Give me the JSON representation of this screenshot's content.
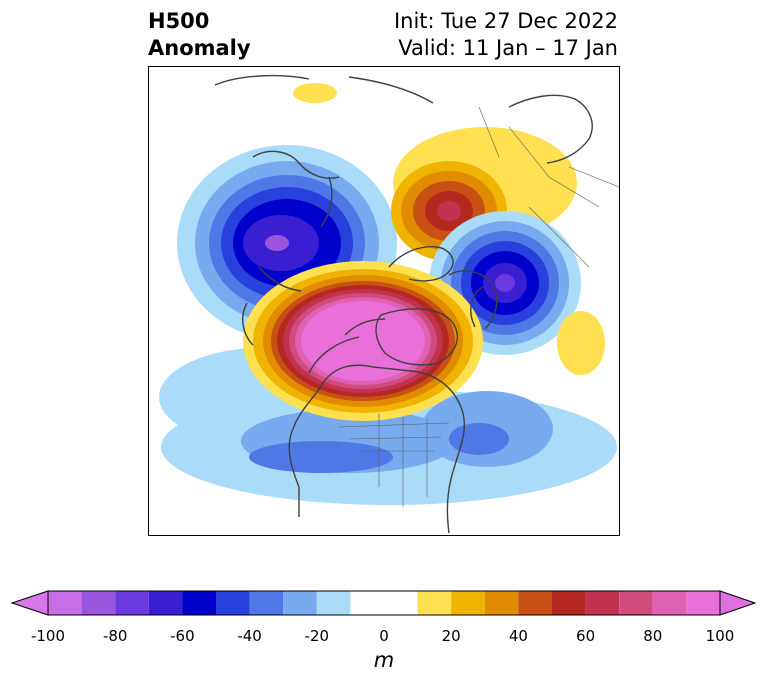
{
  "title": {
    "line1": "H500",
    "line2": "Anomaly"
  },
  "info": {
    "init": "Init: Tue 27 Dec 2022",
    "valid": "Valid: 11 Jan – 17 Jan"
  },
  "colorbar": {
    "unit": "m",
    "ticks": [
      "-100",
      "-80",
      "-60",
      "-40",
      "-20",
      "0",
      "20",
      "40",
      "60",
      "80",
      "100"
    ],
    "levels": [
      -100,
      -90,
      -80,
      -70,
      -60,
      -50,
      -40,
      -30,
      -20,
      -10,
      10,
      20,
      30,
      40,
      50,
      60,
      70,
      80,
      90,
      100
    ],
    "colors": [
      "#c86ee6",
      "#9b56e0",
      "#6a3ae0",
      "#3a1ed2",
      "#0000cc",
      "#2840dc",
      "#4f78e6",
      "#78aaf0",
      "#aadcfa",
      "#ffffff",
      "#ffe050",
      "#f0b400",
      "#e08c00",
      "#c85014",
      "#b42820",
      "#c03250",
      "#d04c7c",
      "#e060b4",
      "#e870d8"
    ],
    "under_color": "#d878e8",
    "over_color": "#e070e0"
  },
  "anomalies": [
    {
      "id": "trough-siberia",
      "sign": "negative",
      "peak_m": -80
    },
    {
      "id": "ridge-arctic-europe",
      "sign": "positive",
      "peak_m": 70
    },
    {
      "id": "trough-west-europe",
      "sign": "negative",
      "peak_m": -80
    },
    {
      "id": "ridge-canada-greenland",
      "sign": "positive",
      "peak_m": 100
    },
    {
      "id": "trough-us",
      "sign": "negative",
      "peak_m": -40
    },
    {
      "id": "trough-west-atlantic",
      "sign": "negative",
      "peak_m": -40
    },
    {
      "id": "ridge-east-atlantic",
      "sign": "positive",
      "peak_m": 20
    },
    {
      "id": "ridge-central-asia",
      "sign": "positive",
      "peak_m": 20
    }
  ]
}
